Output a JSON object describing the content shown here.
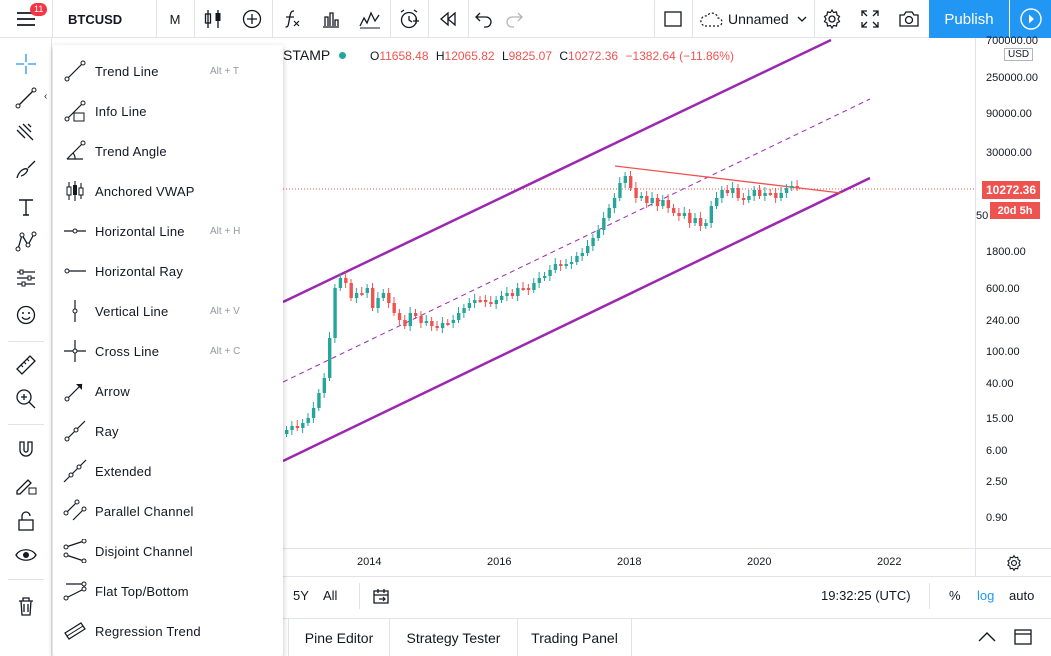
{
  "topbar": {
    "notification_count": "11",
    "symbol": "BTCUSD",
    "interval": "M",
    "layout_name": "Unnamed",
    "publish_label": "Publish"
  },
  "legend": {
    "exchange_fragment": "STAMP",
    "open_label": "O",
    "open": "11658.48",
    "high_label": "H",
    "high": "12065.82",
    "low_label": "L",
    "low": "9825.07",
    "close_label": "C",
    "close": "10272.36",
    "change": "−1382.64 (−11.86%)"
  },
  "drawing_menu": [
    {
      "label": "Trend Line",
      "hotkey": "Alt + T"
    },
    {
      "label": "Info Line",
      "hotkey": ""
    },
    {
      "label": "Trend Angle",
      "hotkey": ""
    },
    {
      "label": "Anchored VWAP",
      "hotkey": ""
    },
    {
      "label": "Horizontal Line",
      "hotkey": "Alt + H"
    },
    {
      "label": "Horizontal Ray",
      "hotkey": ""
    },
    {
      "label": "Vertical Line",
      "hotkey": "Alt + V"
    },
    {
      "label": "Cross Line",
      "hotkey": "Alt + C"
    },
    {
      "label": "Arrow",
      "hotkey": ""
    },
    {
      "label": "Ray",
      "hotkey": ""
    },
    {
      "label": "Extended",
      "hotkey": ""
    },
    {
      "label": "Parallel Channel",
      "hotkey": ""
    },
    {
      "label": "Disjoint Channel",
      "hotkey": ""
    },
    {
      "label": "Flat Top/Bottom",
      "hotkey": ""
    },
    {
      "label": "Regression Trend",
      "hotkey": ""
    }
  ],
  "price_axis": {
    "labels": [
      "700000.00",
      "250000.00",
      "90000.00",
      "30000.00",
      "10272.36",
      "20d 5h",
      "1800.00",
      "600.00",
      "240.00",
      "100.00",
      "40.00",
      "15.00",
      "6.00",
      "2.50",
      "0.90"
    ],
    "currency": "USD",
    "current_price": "10272.36",
    "countdown": "20d 5h",
    "hidden_fragment": "50"
  },
  "time_axis": {
    "labels": [
      "2014",
      "2016",
      "2018",
      "2020",
      "2022"
    ]
  },
  "bottom_bar": {
    "range_5y": "5Y",
    "range_all": "All",
    "clock": "19:32:25 (UTC)",
    "percent": "%",
    "log": "log",
    "auto": "auto"
  },
  "panel_tabs": [
    "Pine Editor",
    "Strategy Tester",
    "Trading Panel"
  ],
  "colors": {
    "accent": "#2196f3",
    "down": "#ef5350",
    "up": "#26a69a",
    "channel": "#9c27b0",
    "badge": "#f23645"
  },
  "chart_data": {
    "type": "candlestick",
    "scale": "log",
    "x_labels": [
      "2014",
      "2016",
      "2018",
      "2020",
      "2022"
    ],
    "y_labels": [
      "0.90",
      "2.50",
      "6.00",
      "15.00",
      "40.00",
      "100.00",
      "240.00",
      "600.00",
      "1800.00",
      "30000.00",
      "90000.00",
      "250000.00",
      "700000.00"
    ],
    "last_price": 10272.36
  }
}
